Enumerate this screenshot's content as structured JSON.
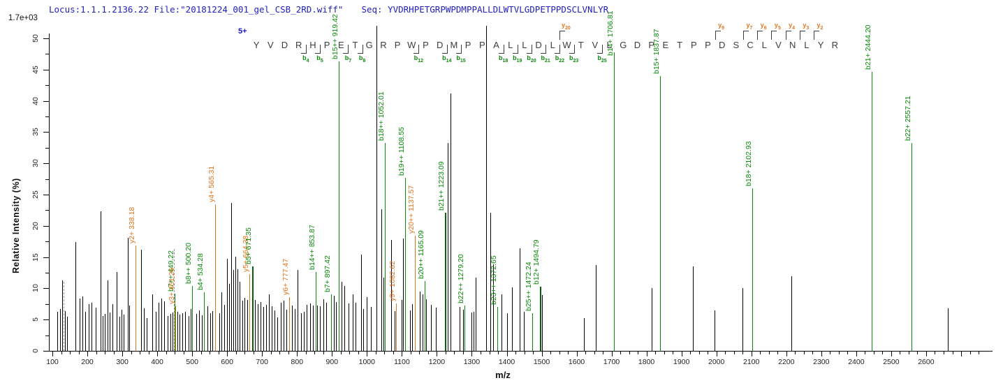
{
  "header": {
    "locus_file": "Locus:1.1.1.2136.22 File:\"20181224_001_gel_CSB_2RD.wiff\"",
    "seq_label": "Seq:",
    "seq_value": "YVDRHPETGRPWPDMPPALLDLWTVLGDPETPPDSCLVNLYR"
  },
  "scale_note": "1.7e+03",
  "precursor_charge": "5+",
  "colors": {
    "b_ion": "#0a8a0a",
    "b_ion_bold": "#065f06",
    "y_ion": "#e0751c",
    "peak_black": "#000000",
    "dashed_gray": "#9a9a9a",
    "header_blue": "#2121c0",
    "sequence_text": "#3c3c3c"
  },
  "chart_data": {
    "type": "bar",
    "subtype": "ms2-peptide-fragment-spectrum",
    "title": "",
    "xlabel": "m/z",
    "ylabel": "Relative  Intensity (%)",
    "xlim": [
      90,
      2780
    ],
    "ylim": [
      0,
      50
    ],
    "x_tick_major": 100,
    "x_tick_minor": 25,
    "x_label_max": 2600,
    "y_tick_major": 5,
    "y_tick_minor": 2.5,
    "grid": false,
    "sequence": "YVDRHPETGRPWPDMPPALLDLWTVLGDPETPPDSCLVNLYR",
    "b_cuts": [
      {
        "num": 4,
        "cell": 4
      },
      {
        "num": 5,
        "cell": 5
      },
      {
        "num": 7,
        "cell": 7
      },
      {
        "num": 8,
        "cell": 8
      },
      {
        "num": 12,
        "cell": 12
      },
      {
        "num": 14,
        "cell": 14
      },
      {
        "num": 15,
        "cell": 15
      },
      {
        "num": 18,
        "cell": 18
      },
      {
        "num": 19,
        "cell": 19
      },
      {
        "num": 20,
        "cell": 20
      },
      {
        "num": 21,
        "cell": 21
      },
      {
        "num": 22,
        "cell": 22
      },
      {
        "num": 23,
        "cell": 23
      },
      {
        "num": 25,
        "cell": 25
      }
    ],
    "y_cuts": [
      {
        "num": 20,
        "cell": 22
      },
      {
        "num": 9,
        "cell": 33
      },
      {
        "num": 7,
        "cell": 35
      },
      {
        "num": 6,
        "cell": 36
      },
      {
        "num": 5,
        "cell": 37
      },
      {
        "num": 4,
        "cell": 38
      },
      {
        "num": 3,
        "cell": 39
      },
      {
        "num": 2,
        "cell": 40
      }
    ],
    "annotated_peaks": [
      {
        "mz": 338.18,
        "intensity": 16.9,
        "label": "y2+ 338.18",
        "ion": "y",
        "bold": false
      },
      {
        "mz": 449.22,
        "intensity": 9.2,
        "label": "b7++ 449.22",
        "ion": "b",
        "bold": false
      },
      {
        "mz": 451.26,
        "intensity": 7.2,
        "label": "y3+ 451.26",
        "ion": "y",
        "bold": false
      },
      {
        "mz": 500.2,
        "intensity": 10.4,
        "label": "b8++ 500.20",
        "ion": "b",
        "bold": false
      },
      {
        "mz": 534.28,
        "intensity": 9.4,
        "label": "b4+ 534.28",
        "ion": "b",
        "bold": false
      },
      {
        "mz": 565.31,
        "intensity": 23.4,
        "label": "y4+ 565.31",
        "ion": "y",
        "bold": false
      },
      {
        "mz": 664.38,
        "intensity": 12.3,
        "label": "y5+ 664.38",
        "ion": "y",
        "bold": false
      },
      {
        "mz": 671.35,
        "intensity": 13.5,
        "label": "b5+ 671.35",
        "ion": "b",
        "bold": true
      },
      {
        "mz": 777.47,
        "intensity": 8.6,
        "label": "y6+ 777.47",
        "ion": "y",
        "bold": false
      },
      {
        "mz": 853.87,
        "intensity": 12.6,
        "label": "b14++ 853.87",
        "ion": "b",
        "bold": false
      },
      {
        "mz": 897.42,
        "intensity": 9.1,
        "label": "b7+ 897.42",
        "ion": "b",
        "bold": false
      },
      {
        "mz": 919.42,
        "intensity": 46.3,
        "label": "b15++ 919.42",
        "ion": "b",
        "bold": false
      },
      {
        "mz": 1052.01,
        "intensity": 33.3,
        "label": "b18++ 1052.01",
        "ion": "b",
        "bold": false
      },
      {
        "mz": 1082.62,
        "intensity": 7.6,
        "label": "y9+ 1082.62",
        "ion": "y",
        "bold": false
      },
      {
        "mz": 1108.55,
        "intensity": 27.7,
        "label": "b19++ 1108.55",
        "ion": "b",
        "bold": false
      },
      {
        "mz": 1137.57,
        "intensity": 18.4,
        "label": "y20++ 1137.57",
        "ion": "y",
        "bold": false
      },
      {
        "mz": 1165.09,
        "intensity": 11.2,
        "label": "b20++ 1165.09",
        "ion": "b",
        "bold": false
      },
      {
        "mz": 1223.09,
        "intensity": 22.1,
        "label": "b21++ 1223.09",
        "ion": "b",
        "bold": true
      },
      {
        "mz": 1279.2,
        "intensity": 7.3,
        "label": "b22++ 1279.20",
        "ion": "b",
        "bold": false
      },
      {
        "mz": 1372.65,
        "intensity": 7.0,
        "label": "b23++ 1372.65",
        "ion": "b",
        "bold": false
      },
      {
        "mz": 1472.24,
        "intensity": 6.0,
        "label": "b25++ 1472.24",
        "ion": "b",
        "bold": false
      },
      {
        "mz": 1494.79,
        "intensity": 10.3,
        "label": "b12+ 1494.79",
        "ion": "b",
        "bold": true
      },
      {
        "mz": 1706.81,
        "intensity": 47.8,
        "label": "b14+ 1706.81",
        "ion": "b",
        "bold": false
      },
      {
        "mz": 1837.87,
        "intensity": 44.0,
        "label": "b15+ 1837.87",
        "ion": "b",
        "bold": false
      },
      {
        "mz": 2102.93,
        "intensity": 26.0,
        "label": "b18+ 2102.93",
        "ion": "b",
        "bold": false
      },
      {
        "mz": 2444.2,
        "intensity": 44.6,
        "label": "b21+ 2444.20",
        "ion": "b",
        "bold": false
      },
      {
        "mz": 2557.21,
        "intensity": 33.3,
        "label": "b22+ 2557.21",
        "ion": "b",
        "bold": false
      }
    ],
    "background_peaks": [
      [
        113,
        6.3
      ],
      [
        121,
        6.7
      ],
      [
        127,
        11.3
      ],
      [
        136,
        6.4
      ],
      [
        142,
        5.5
      ],
      [
        166,
        17.4
      ],
      [
        178,
        8.4
      ],
      [
        186,
        8.7
      ],
      [
        193,
        6.3
      ],
      [
        204,
        7.5
      ],
      [
        212,
        7.7
      ],
      [
        224,
        6.9
      ],
      [
        237,
        22.3
      ],
      [
        244,
        5.6
      ],
      [
        250,
        5.9
      ],
      [
        257,
        11.3
      ],
      [
        264,
        6.1
      ],
      [
        272,
        7.5
      ],
      [
        283,
        12.6
      ],
      [
        291,
        5.5
      ],
      [
        297,
        6.6
      ],
      [
        304,
        5.8
      ],
      [
        315,
        18.1
      ],
      [
        320,
        7.3
      ],
      [
        353,
        16.2
      ],
      [
        362,
        6.8
      ],
      [
        370,
        5.2
      ],
      [
        386,
        9.0
      ],
      [
        395,
        6.2
      ],
      [
        404,
        7.7
      ],
      [
        411,
        8.4
      ],
      [
        420,
        7.9
      ],
      [
        429,
        5.6
      ],
      [
        437,
        5.9
      ],
      [
        443,
        6.1
      ],
      [
        457,
        6.3
      ],
      [
        463,
        5.8
      ],
      [
        472,
        6.0
      ],
      [
        479,
        6.3
      ],
      [
        490,
        5.6
      ],
      [
        495,
        6.7
      ],
      [
        511,
        5.9
      ],
      [
        519,
        6.5
      ],
      [
        527,
        5.7
      ],
      [
        543,
        7.1
      ],
      [
        551,
        6.0
      ],
      [
        558,
        6.4
      ],
      [
        577,
        6.0
      ],
      [
        583,
        9.4
      ],
      [
        591,
        7.4
      ],
      [
        599,
        14.7
      ],
      [
        606,
        10.7
      ],
      [
        612,
        23.7
      ],
      [
        617,
        12.9
      ],
      [
        623,
        15.1
      ],
      [
        629,
        13.1
      ],
      [
        636,
        11.0
      ],
      [
        643,
        8.0
      ],
      [
        650,
        8.5
      ],
      [
        657,
        8.1
      ],
      [
        680,
        8.2
      ],
      [
        688,
        7.5
      ],
      [
        695,
        7.8
      ],
      [
        703,
        7.0
      ],
      [
        711,
        7.4
      ],
      [
        719,
        9.0
      ],
      [
        727,
        7.1
      ],
      [
        735,
        6.5
      ],
      [
        744,
        5.4
      ],
      [
        753,
        7.7
      ],
      [
        762,
        8.0
      ],
      [
        770,
        6.6
      ],
      [
        786,
        7.3
      ],
      [
        794,
        6.7
      ],
      [
        801,
        13.0
      ],
      [
        812,
        6.0
      ],
      [
        820,
        6.2
      ],
      [
        828,
        7.4
      ],
      [
        837,
        7.6
      ],
      [
        846,
        7.3
      ],
      [
        858,
        7.3
      ],
      [
        866,
        7.1
      ],
      [
        875,
        8.3
      ],
      [
        884,
        7.7
      ],
      [
        905,
        8.8
      ],
      [
        912,
        7.8
      ],
      [
        928,
        11.1
      ],
      [
        936,
        10.4
      ],
      [
        947,
        7.6
      ],
      [
        960,
        9.1
      ],
      [
        968,
        7.7
      ],
      [
        984,
        15.4
      ],
      [
        990,
        6.7
      ],
      [
        1000,
        8.6
      ],
      [
        1012,
        7.0
      ],
      [
        1028,
        52.0
      ],
      [
        1042,
        22.7
      ],
      [
        1047,
        11.7
      ],
      [
        1070,
        17.8
      ],
      [
        1080,
        6.4
      ],
      [
        1100,
        8.1
      ],
      [
        1104,
        18.0
      ],
      [
        1124,
        6.5
      ],
      [
        1130,
        7.5
      ],
      [
        1152,
        9.5
      ],
      [
        1160,
        9.1
      ],
      [
        1170,
        8.3
      ],
      [
        1183,
        7.4
      ],
      [
        1197,
        6.9
      ],
      [
        1232,
        33.3
      ],
      [
        1239,
        41.2
      ],
      [
        1265,
        7.0
      ],
      [
        1276,
        6.6
      ],
      [
        1300,
        6.1
      ],
      [
        1304,
        6.2
      ],
      [
        1310,
        11.7
      ],
      [
        1341,
        52.0
      ],
      [
        1352,
        22.1
      ],
      [
        1360,
        13.9
      ],
      [
        1385,
        9.1
      ],
      [
        1400,
        6.0
      ],
      [
        1415,
        10.2
      ],
      [
        1437,
        16.4
      ],
      [
        1448,
        6.2
      ],
      [
        1500,
        8.9
      ],
      [
        1620,
        5.3
      ],
      [
        1655,
        13.7
      ],
      [
        1815,
        10.0
      ],
      [
        1932,
        13.5
      ],
      [
        1995,
        6.5
      ],
      [
        2075,
        10.0
      ],
      [
        2215,
        11.9
      ],
      [
        2661,
        6.8
      ]
    ],
    "dashed_peaks": [
      [
        131,
        11.0
      ],
      [
        447,
        16.3
      ]
    ]
  }
}
